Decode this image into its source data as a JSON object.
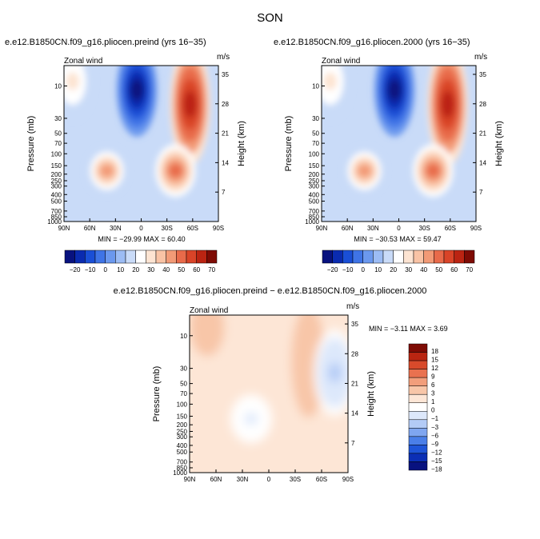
{
  "figure": {
    "season": "SON",
    "panel_titles": [
      "e.e12.B1850CN.f09_g16.pliocen.preind (yrs 16−35)",
      "e.e12.B1850CN.f09_g16.pliocen.2000 (yrs 16−35)",
      "e.e12.B1850CN.f09_g16.pliocen.preind − e.e12.B1850CN.f09_g16.pliocen.2000"
    ]
  },
  "colors": {
    "wind_scale": [
      "#08127f",
      "#0a2bb0",
      "#1a4fd6",
      "#3f74e6",
      "#6b98ee",
      "#9cbcf4",
      "#c9dbf8",
      "#ffffff",
      "#fde4d2",
      "#f9c3a5",
      "#f29a76",
      "#e86a4a",
      "#d94428",
      "#bb2412",
      "#7e0b04"
    ],
    "diff_scale": [
      "#08127f",
      "#0b2fb5",
      "#1e55d8",
      "#4a7fe8",
      "#7fa6f0",
      "#b3cbf6",
      "#dde8fb",
      "#ffffff",
      "#fde6d6",
      "#f8c6a8",
      "#f29e7b",
      "#e9714f",
      "#d84a2b",
      "#b92511",
      "#7e0b04"
    ]
  },
  "chart_data": [
    {
      "type": "contour",
      "title": "e.e12.B1850CN.f09_g16.pliocen.preind (yrs 16−35)",
      "left_label": "Zonal wind",
      "right_label": "m/s",
      "xlabel": "",
      "ylabel": "Pressure (mb)",
      "y2label": "Height (km)",
      "x_ticks": [
        "90N",
        "60N",
        "30N",
        "0",
        "30S",
        "60S",
        "90S"
      ],
      "y_ticks": [
        "10",
        "30",
        "50",
        "70",
        "100",
        "150",
        "200",
        "250",
        "300",
        "400",
        "500",
        "700",
        "850",
        "1000"
      ],
      "y2_ticks": [
        "35",
        "28",
        "21",
        "14",
        "7"
      ],
      "ylim": [
        1000,
        5
      ],
      "min_text": "MIN = −29.99   MAX =   60.40",
      "min": -29.99,
      "max": 60.4,
      "colorbar_ticks": [
        "−20",
        "−10",
        "0",
        "10",
        "20",
        "30",
        "40",
        "50",
        "60",
        "70"
      ],
      "features": [
        {
          "kind": "jet",
          "lat": -57,
          "p_top": 5,
          "p_bottom": 120,
          "value": 58
        },
        {
          "kind": "jet",
          "lat": -40,
          "p_top": 90,
          "p_bottom": 350,
          "value": 32
        },
        {
          "kind": "jet",
          "lat": 40,
          "p_top": 100,
          "p_bottom": 320,
          "value": 22
        },
        {
          "kind": "jet",
          "lat": 80,
          "p_top": 5,
          "p_bottom": 25,
          "value": 12
        },
        {
          "kind": "easterly",
          "lat": 5,
          "p_top": 5,
          "p_bottom": 45,
          "value": -28
        }
      ]
    },
    {
      "type": "contour",
      "title": "e.e12.B1850CN.f09_g16.pliocen.2000 (yrs 16−35)",
      "left_label": "Zonal wind",
      "right_label": "m/s",
      "xlabel": "",
      "ylabel": "Pressure (mb)",
      "y2label": "Height (km)",
      "x_ticks": [
        "90N",
        "60N",
        "30N",
        "0",
        "30S",
        "60S",
        "90S"
      ],
      "y_ticks": [
        "10",
        "30",
        "50",
        "70",
        "100",
        "150",
        "200",
        "250",
        "300",
        "400",
        "500",
        "700",
        "850",
        "1000"
      ],
      "y2_ticks": [
        "35",
        "28",
        "21",
        "14",
        "7"
      ],
      "ylim": [
        1000,
        5
      ],
      "min_text": "MIN = −30.53   MAX =   59.47",
      "min": -30.53,
      "max": 59.47,
      "colorbar_ticks": [
        "−20",
        "−10",
        "0",
        "10",
        "20",
        "30",
        "40",
        "50",
        "60",
        "70"
      ],
      "features": [
        {
          "kind": "jet",
          "lat": -57,
          "p_top": 5,
          "p_bottom": 120,
          "value": 57
        },
        {
          "kind": "jet",
          "lat": -40,
          "p_top": 90,
          "p_bottom": 350,
          "value": 31
        },
        {
          "kind": "jet",
          "lat": 40,
          "p_top": 100,
          "p_bottom": 320,
          "value": 22
        },
        {
          "kind": "jet",
          "lat": 80,
          "p_top": 5,
          "p_bottom": 25,
          "value": 12
        },
        {
          "kind": "easterly",
          "lat": 5,
          "p_top": 5,
          "p_bottom": 45,
          "value": -29
        }
      ]
    },
    {
      "type": "contour",
      "title": "e.e12.B1850CN.f09_g16.pliocen.preind − e.e12.B1850CN.f09_g16.pliocen.2000",
      "left_label": "Zonal wind",
      "right_label": "m/s",
      "xlabel": "",
      "ylabel": "Pressure (mb)",
      "y2label": "Height (km)",
      "x_ticks": [
        "90N",
        "60N",
        "30N",
        "0",
        "30S",
        "60S",
        "90S"
      ],
      "y_ticks": [
        "10",
        "30",
        "50",
        "70",
        "100",
        "150",
        "200",
        "250",
        "300",
        "400",
        "500",
        "700",
        "850",
        "1000"
      ],
      "y2_ticks": [
        "35",
        "28",
        "21",
        "14",
        "7"
      ],
      "ylim": [
        1000,
        5
      ],
      "min_text": "MIN =   −3.11   MAX =    3.69",
      "min": -3.11,
      "max": 3.69,
      "colorbar_ticks": [
        "18",
        "15",
        "12",
        "9",
        "6",
        "3",
        "1",
        "0",
        "−1",
        "−3",
        "−6",
        "−9",
        "−12",
        "−15",
        "−18"
      ],
      "features": [
        {
          "kind": "jet",
          "lat": 70,
          "p_top": 5,
          "p_bottom": 20,
          "value": 3
        },
        {
          "kind": "jet",
          "lat": -45,
          "p_top": 5,
          "p_bottom": 200,
          "value": 3
        },
        {
          "kind": "easterly",
          "lat": -75,
          "p_top": 10,
          "p_bottom": 120,
          "value": -3
        },
        {
          "kind": "easterly",
          "lat": 20,
          "p_top": 90,
          "p_bottom": 300,
          "value": -1
        }
      ]
    }
  ]
}
